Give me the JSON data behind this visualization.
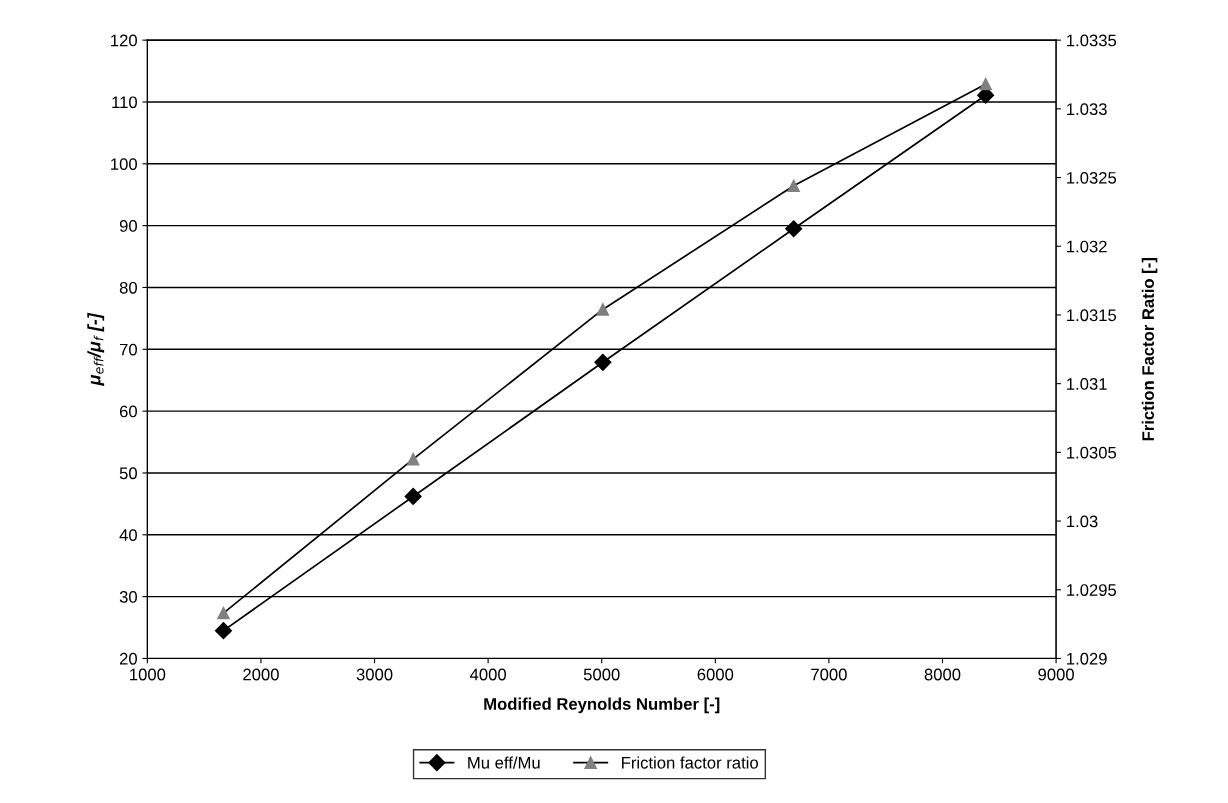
{
  "chart_data": {
    "type": "line",
    "xlabel": "Modified Reynolds Number [-]",
    "ylabel": "μ$_{eff}$/μ$_{f}$ [-]",
    "y2label": "Friction Factor Ratio [-]",
    "x": [
      1670,
      3340,
      5010,
      6690,
      8380
    ],
    "series": [
      {
        "name": "Mu eff/Mu",
        "color": "#000000",
        "marker": "diamond",
        "values": [
          24.5,
          46.2,
          67.9,
          89.5,
          111.1
        ]
      },
      {
        "name": "Friction factor ratio",
        "color": "#808080",
        "marker": "triangle",
        "axis": "y2",
        "values": [
          1.02933,
          1.03045,
          1.03154,
          1.03244,
          1.03318
        ]
      }
    ],
    "xlim": [
      1000,
      9000
    ],
    "xticks": [
      1000,
      2000,
      3000,
      4000,
      5000,
      6000,
      7000,
      8000,
      9000
    ],
    "ylim": [
      20,
      120
    ],
    "yticks": [
      20,
      30,
      40,
      50,
      60,
      70,
      80,
      90,
      100,
      110,
      120
    ],
    "y2lim": [
      1.029,
      1.0335
    ],
    "y2ticks": [
      1.029,
      1.0295,
      1.03,
      1.0305,
      1.031,
      1.0315,
      1.032,
      1.0325,
      1.033,
      1.0335
    ],
    "grid": "y",
    "legend": "bottom",
    "line_style": "solid"
  }
}
